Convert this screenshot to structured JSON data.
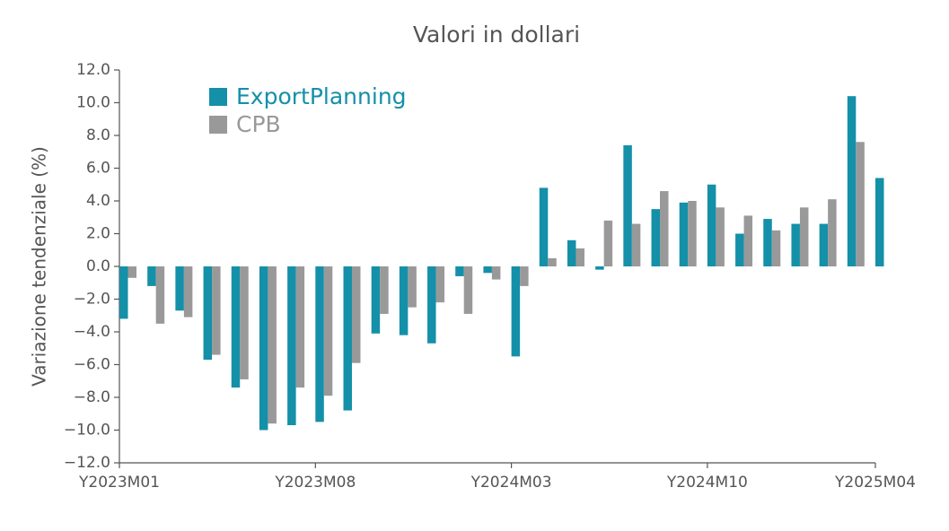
{
  "chart_data": {
    "type": "bar",
    "title": "Valori in dollari",
    "y_label": "Variazione tendenziale (%)",
    "categories": [
      "Y2023M01",
      null,
      null,
      null,
      null,
      null,
      null,
      "Y2023M08",
      null,
      null,
      null,
      null,
      null,
      null,
      "Y2024M03",
      null,
      null,
      null,
      null,
      null,
      null,
      "Y2024M10",
      null,
      null,
      null,
      null,
      null,
      "Y2025M04"
    ],
    "series": [
      {
        "name": "ExportPlanning",
        "color": "#1490a8",
        "values": [
          -3.2,
          -1.2,
          -2.7,
          -5.7,
          -7.4,
          -10.0,
          -9.7,
          -9.5,
          -8.8,
          -4.1,
          -4.2,
          -4.7,
          -0.6,
          -0.4,
          -5.5,
          4.8,
          1.6,
          -0.2,
          7.4,
          3.5,
          3.9,
          5.0,
          2.0,
          2.9,
          2.6,
          2.6,
          10.4,
          5.4
        ]
      },
      {
        "name": "CPB",
        "color": "#999999",
        "values": [
          -0.7,
          -3.5,
          -3.1,
          -5.4,
          -6.9,
          -9.6,
          -7.4,
          -7.9,
          -5.9,
          -2.9,
          -2.5,
          -2.2,
          -2.9,
          -0.8,
          -1.2,
          0.5,
          1.1,
          2.8,
          2.6,
          4.6,
          4.0,
          3.6,
          3.1,
          2.2,
          3.6,
          4.1,
          7.6,
          null
        ]
      }
    ],
    "ylim": [
      -12,
      12
    ],
    "yticks": [
      {
        "value": -12,
        "label": "−12.0"
      },
      {
        "value": -10,
        "label": "−10.0"
      },
      {
        "value": -8,
        "label": "−8.0"
      },
      {
        "value": -6,
        "label": "−6.0"
      },
      {
        "value": -4,
        "label": "−4.0"
      },
      {
        "value": -2,
        "label": "−2.0"
      },
      {
        "value": 0,
        "label": "0.0"
      },
      {
        "value": 2,
        "label": "2.0"
      },
      {
        "value": 4,
        "label": "4.0"
      },
      {
        "value": 6,
        "label": "6.0"
      },
      {
        "value": 8,
        "label": "8.0"
      },
      {
        "value": 10,
        "label": "10.0"
      },
      {
        "value": 12,
        "label": "12.0"
      }
    ],
    "legend": "upper left"
  }
}
